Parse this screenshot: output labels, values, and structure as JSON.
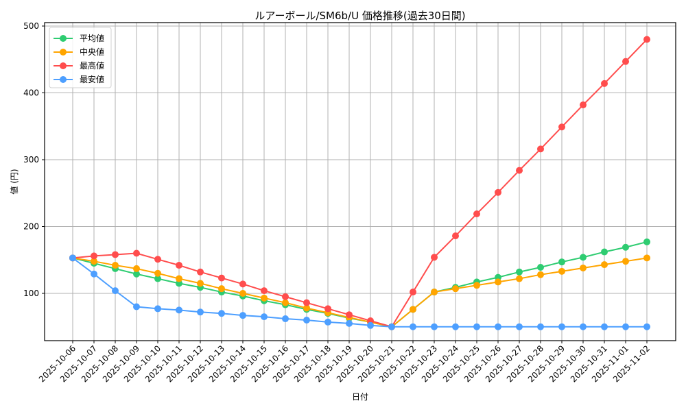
{
  "chart_data": {
    "type": "line",
    "title": "ルアーボール/SM6b/U 価格推移(過去30日間)",
    "xlabel": "日付",
    "ylabel": "値 (円)",
    "ylim": [
      28,
      502
    ],
    "yticks": [
      100,
      200,
      300,
      400,
      500
    ],
    "grid": true,
    "legend_position": "upper left",
    "categories": [
      "2025-10-06",
      "2025-10-07",
      "2025-10-08",
      "2025-10-09",
      "2025-10-10",
      "2025-10-11",
      "2025-10-12",
      "2025-10-13",
      "2025-10-14",
      "2025-10-15",
      "2025-10-16",
      "2025-10-17",
      "2025-10-18",
      "2025-10-19",
      "2025-10-20",
      "2025-10-21",
      "2025-10-22",
      "2025-10-23",
      "2025-10-24",
      "2025-10-25",
      "2025-10-26",
      "2025-10-27",
      "2025-10-28",
      "2025-10-29",
      "2025-10-30",
      "2025-10-31",
      "2025-11-01",
      "2025-11-02"
    ],
    "series": [
      {
        "name": "平均値",
        "color": "#2ecc71",
        "values": [
          153,
          145,
          137,
          129,
          122,
          115,
          109,
          102,
          96,
          89,
          83,
          76,
          70,
          63,
          57,
          50,
          76,
          102,
          109,
          117,
          124,
          132,
          139,
          147,
          154,
          162,
          169,
          177
        ]
      },
      {
        "name": "中央値",
        "color": "#ffa500",
        "values": [
          153,
          148,
          142,
          137,
          130,
          122,
          115,
          107,
          100,
          93,
          86,
          78,
          71,
          64,
          57,
          50,
          76,
          102,
          107,
          112,
          117,
          122,
          128,
          133,
          138,
          143,
          148,
          153
        ]
      },
      {
        "name": "最高値",
        "color": "#ff4d4d",
        "values": [
          153,
          156,
          158,
          160,
          151,
          142,
          132,
          123,
          114,
          104,
          95,
          86,
          77,
          68,
          59,
          50,
          102,
          154,
          186,
          219,
          251,
          284,
          316,
          349,
          382,
          414,
          447,
          480
        ]
      },
      {
        "name": "最安値",
        "color": "#4d9fff",
        "values": [
          153,
          129,
          104,
          80,
          77,
          75,
          72,
          70,
          67,
          65,
          62,
          60,
          57,
          55,
          52,
          50,
          50,
          50,
          50,
          50,
          50,
          50,
          50,
          50,
          50,
          50,
          50,
          50
        ]
      }
    ]
  }
}
